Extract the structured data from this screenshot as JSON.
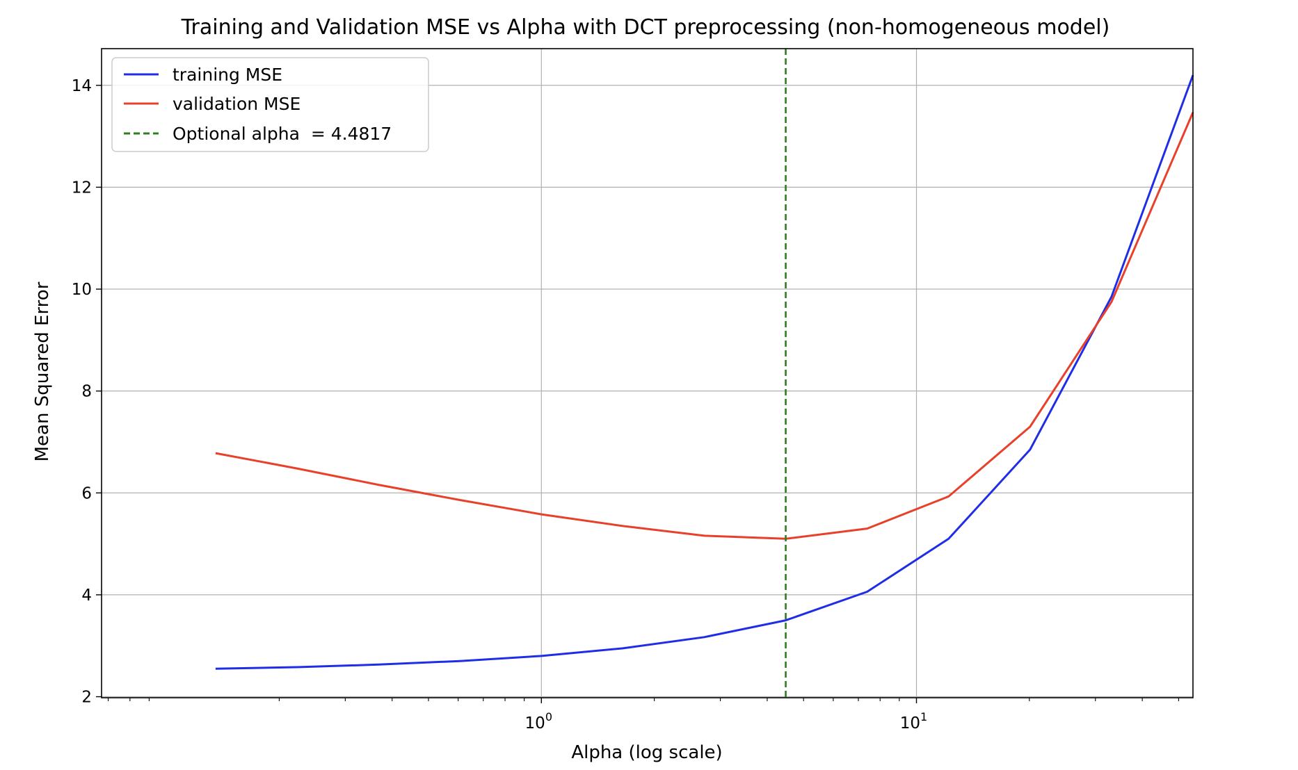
{
  "chart_data": {
    "type": "line",
    "title": "Training and Validation MSE vs Alpha with DCT preprocessing (non-homogeneous model)",
    "xlabel": "Alpha (log scale)",
    "ylabel": "Mean Squared Error",
    "xscale": "log",
    "xlim": [
      0.0672,
      54.6
    ],
    "ylim": [
      1.98,
      14.72
    ],
    "x_ticks": [
      {
        "value": 1,
        "base": "10",
        "exp": "0"
      },
      {
        "value": 10,
        "base": "10",
        "exp": "1"
      }
    ],
    "y_ticks": [
      2,
      4,
      6,
      8,
      10,
      12,
      14
    ],
    "grid": true,
    "legend_position": "upper-left",
    "x": [
      0.1353,
      0.2231,
      0.3679,
      0.6065,
      1.0,
      1.6487,
      2.7183,
      4.4817,
      7.3891,
      12.1825,
      20.0855,
      33.1155,
      54.5982
    ],
    "series": [
      {
        "name": "training MSE",
        "color": "#1f2ee6",
        "style": "solid",
        "values": [
          2.55,
          2.58,
          2.63,
          2.7,
          2.8,
          2.95,
          3.17,
          3.5,
          4.06,
          5.1,
          6.85,
          9.85,
          14.2
        ]
      },
      {
        "name": "validation MSE",
        "color": "#e8402a",
        "style": "solid",
        "values": [
          6.78,
          6.48,
          6.16,
          5.86,
          5.58,
          5.35,
          5.16,
          5.1,
          5.3,
          5.93,
          7.3,
          9.75,
          13.47
        ]
      }
    ],
    "vline": {
      "x": 4.4817,
      "label": "Optional alpha  = 4.4817",
      "color": "#2e7d1e",
      "style": "dashed"
    }
  }
}
